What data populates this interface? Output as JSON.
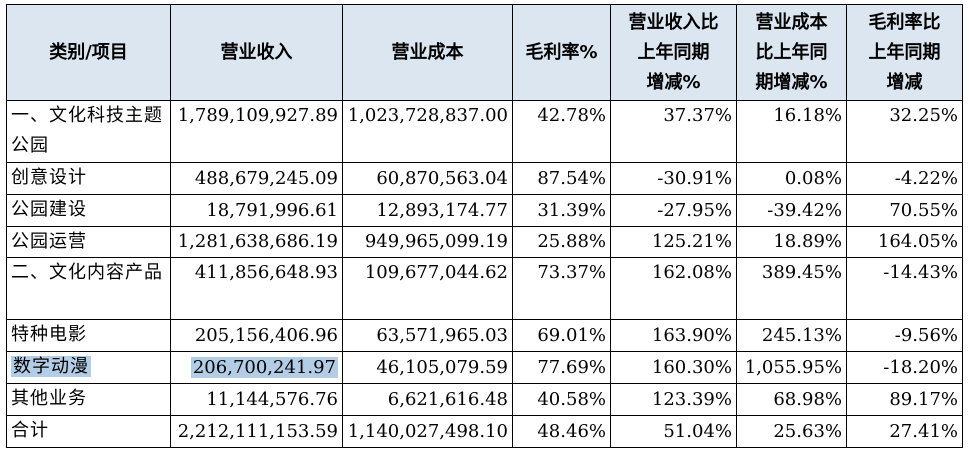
{
  "header": {
    "category": "类别/项目",
    "revenue": "营业收入",
    "cost": "营业成本",
    "gross_margin": "毛利率%",
    "revenue_yoy": [
      "营业收入比",
      "上年同期",
      "增减%"
    ],
    "cost_yoy": [
      "营业成本",
      "比上年同",
      "期增减%"
    ],
    "margin_yoy": [
      "毛利率比",
      "上年同期",
      "增减"
    ]
  },
  "rows": [
    {
      "category": "一、文化科技主题公园",
      "revenue": "1,789,109,927.89",
      "cost": "1,023,728,837.00",
      "gross_margin": "42.78%",
      "revenue_yoy": "37.37%",
      "cost_yoy": "16.18%",
      "margin_yoy": "32.25%"
    },
    {
      "category": "创意设计",
      "revenue": "488,679,245.09",
      "cost": "60,870,563.04",
      "gross_margin": "87.54%",
      "revenue_yoy": "-30.91%",
      "cost_yoy": "0.08%",
      "margin_yoy": "-4.22%"
    },
    {
      "category": "公园建设",
      "revenue": "18,791,996.61",
      "cost": "12,893,174.77",
      "gross_margin": "31.39%",
      "revenue_yoy": "-27.95%",
      "cost_yoy": "-39.42%",
      "margin_yoy": "70.55%"
    },
    {
      "category": "公园运营",
      "revenue": "1,281,638,686.19",
      "cost": "949,965,099.19",
      "gross_margin": "25.88%",
      "revenue_yoy": "125.21%",
      "cost_yoy": "18.89%",
      "margin_yoy": "164.05%"
    },
    {
      "category": "二、文化内容产品",
      "revenue": "411,856,648.93",
      "cost": "109,677,044.62",
      "gross_margin": "73.37%",
      "revenue_yoy": "162.08%",
      "cost_yoy": "389.45%",
      "margin_yoy": "-14.43%"
    },
    {
      "category": "特种电影",
      "revenue": "205,156,406.96",
      "cost": "63,571,965.03",
      "gross_margin": "69.01%",
      "revenue_yoy": "163.90%",
      "cost_yoy": "245.13%",
      "margin_yoy": "-9.56%"
    },
    {
      "category": "数字动漫",
      "revenue": "206,700,241.97",
      "cost": "46,105,079.59",
      "gross_margin": "77.69%",
      "revenue_yoy": "160.30%",
      "cost_yoy": "1,055.95%",
      "margin_yoy": "-18.20%"
    },
    {
      "category": "其他业务",
      "revenue": "11,144,576.76",
      "cost": "6,621,616.48",
      "gross_margin": "40.58%",
      "revenue_yoy": "123.39%",
      "cost_yoy": "68.98%",
      "margin_yoy": "89.17%"
    },
    {
      "category": "合计",
      "revenue": "2,212,111,153.59",
      "cost": "1,140,027,498.10",
      "gross_margin": "48.46%",
      "revenue_yoy": "51.04%",
      "cost_yoy": "25.63%",
      "margin_yoy": "27.41%"
    }
  ],
  "highlight_color": "#b4cde6",
  "header_bg": "#dce6f1"
}
